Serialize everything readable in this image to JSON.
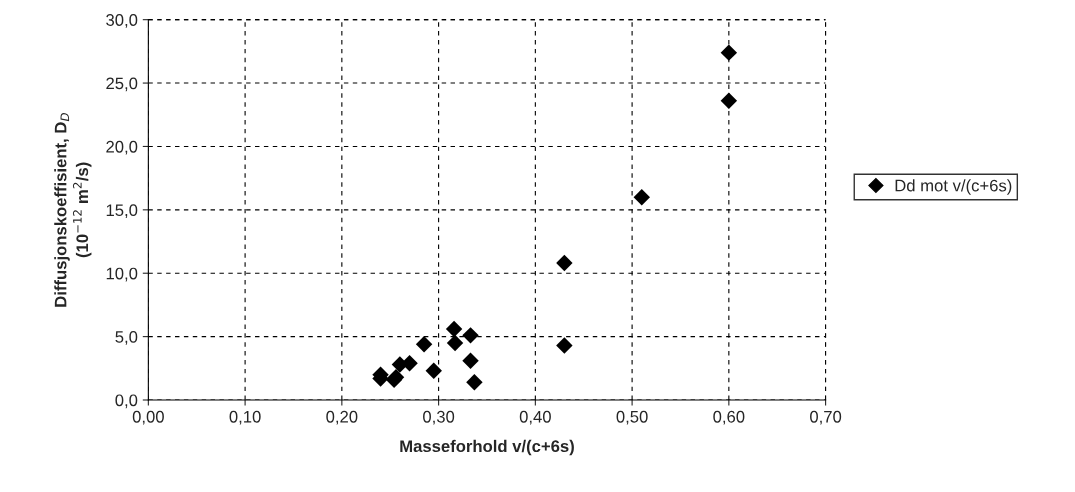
{
  "chart_data": {
    "type": "scatter",
    "xlabel": "Masseforhold v/(c+6s)",
    "ylabel": "Diffusjonskoeffisient, D$_{D}$\n(10$^{−12}$ m$^{2}$/s)",
    "x": [
      0.24,
      0.24,
      0.254,
      0.256,
      0.26,
      0.27,
      0.285,
      0.295,
      0.316,
      0.317,
      0.333,
      0.333,
      0.337,
      0.43,
      0.43,
      0.51,
      0.6,
      0.6
    ],
    "series": [
      {
        "name": "Dd mot v/(c+6s)",
        "color": "#000000",
        "values": [
          2.0,
          1.7,
          1.6,
          1.8,
          2.8,
          2.9,
          4.4,
          2.3,
          5.6,
          4.5,
          5.1,
          3.1,
          1.4,
          10.8,
          4.3,
          16.0,
          27.4,
          23.6
        ]
      }
    ],
    "xlim": [
      0,
      0.7
    ],
    "xticks": [
      {
        "value": 0,
        "label": "0,00"
      },
      {
        "value": 0.1,
        "label": "0,10"
      },
      {
        "value": 0.2,
        "label": "0,20"
      },
      {
        "value": 0.3,
        "label": "0,30"
      },
      {
        "value": 0.4,
        "label": "0,40"
      },
      {
        "value": 0.5,
        "label": "0,50"
      },
      {
        "value": 0.6,
        "label": "0,60"
      },
      {
        "value": 0.7,
        "label": "0,70"
      }
    ],
    "ylim": [
      0,
      30
    ],
    "yticks": [
      {
        "value": 0,
        "label": "0,0"
      },
      {
        "value": 5,
        "label": "5,0"
      },
      {
        "value": 10,
        "label": "10,0"
      },
      {
        "value": 15,
        "label": "15,0"
      },
      {
        "value": 20,
        "label": "20,0"
      },
      {
        "value": 25,
        "label": "25,0"
      },
      {
        "value": 30,
        "label": "30,0"
      }
    ],
    "grid": true,
    "legend": "right",
    "marker": "diamond"
  }
}
